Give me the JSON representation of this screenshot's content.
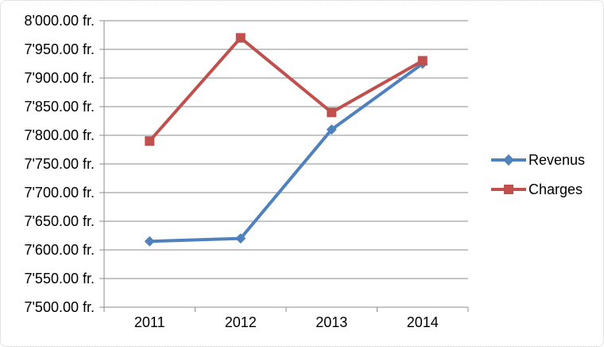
{
  "chart_data": {
    "type": "line",
    "categories": [
      "2011",
      "2012",
      "2013",
      "2014"
    ],
    "series": [
      {
        "name": "Revenus",
        "values": [
          7615,
          7620,
          7810,
          7925
        ],
        "color": "#4F81BD",
        "marker": "diamond"
      },
      {
        "name": "Charges",
        "values": [
          7790,
          7970,
          7840,
          7930
        ],
        "color": "#C0504D",
        "marker": "square"
      }
    ],
    "title": "",
    "xlabel": "",
    "ylabel": "",
    "ylim": [
      7500,
      8000
    ],
    "y_step": 50,
    "y_tick_labels": [
      "8'000.00 fr.",
      "7'950.00 fr.",
      "7'900.00 fr.",
      "7'850.00 fr.",
      "7'800.00 fr.",
      "7'750.00 fr.",
      "7'700.00 fr.",
      "7'650.00 fr.",
      "7'600.00 fr.",
      "7'550.00 fr.",
      "7'500.00 fr."
    ],
    "grid": true,
    "legend_position": "right"
  },
  "legend": {
    "items": [
      {
        "label": "Revenus"
      },
      {
        "label": "Charges"
      }
    ]
  },
  "colors": {
    "revenus": "#4F81BD",
    "charges": "#C0504D",
    "gridline": "#8C8C8C",
    "axis": "#8C8C8C",
    "text": "#000000",
    "border": "#C6C6C6",
    "background": "#FFFFFF"
  }
}
